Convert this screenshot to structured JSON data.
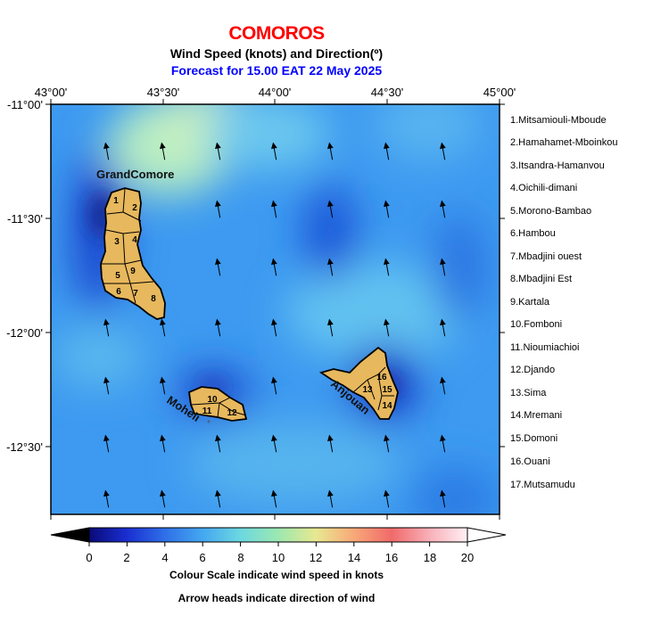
{
  "title": "COMOROS",
  "subtitle": "Wind Speed (knots) and Direction(º)",
  "forecast": "Forecast for  15.00 EAT 22 May 2025",
  "lon_ticks": [
    "43°00'",
    "43°30'",
    "44°00'",
    "44°30'",
    "45°00'"
  ],
  "lat_ticks": [
    "-11°00'",
    "-11°30'",
    "-12°00'",
    "-12°30'"
  ],
  "island_labels": {
    "grandcomore": "GrandComore",
    "moheli": "Moheli",
    "anjouan": "Anjouan"
  },
  "regions": [
    "1.Mitsamiouli-Mboude",
    "2.Hamahamet-Mboinkou",
    "3.Itsandra-Hamanvou",
    "4.Oichili-dimani",
    "5.Morono-Bambao",
    "6.Hambou",
    "7.Mbadjini ouest",
    "8.Mbadjini Est",
    "9.Kartala",
    "10.Fomboni",
    "11.Nioumiachioi",
    "12.Djando",
    "13.Sima",
    "14.Mremani",
    "15.Domoni",
    "16.Ouani",
    "17.Mutsamudu"
  ],
  "region_numbers": [
    "1",
    "2",
    "3",
    "4",
    "5",
    "6",
    "7",
    "8",
    "9",
    "10",
    "11",
    "12",
    "13",
    "14",
    "15",
    "16"
  ],
  "colorbar": {
    "ticks": [
      "0",
      "2",
      "4",
      "6",
      "8",
      "10",
      "12",
      "14",
      "16",
      "18",
      "20"
    ],
    "caption1": "Colour Scale indicate wind speed in knots",
    "caption2": "Arrow heads indicate direction of wind"
  },
  "colors": {
    "island": "#e7b85d",
    "title": "#ff0000",
    "forecast": "#0000ff"
  }
}
